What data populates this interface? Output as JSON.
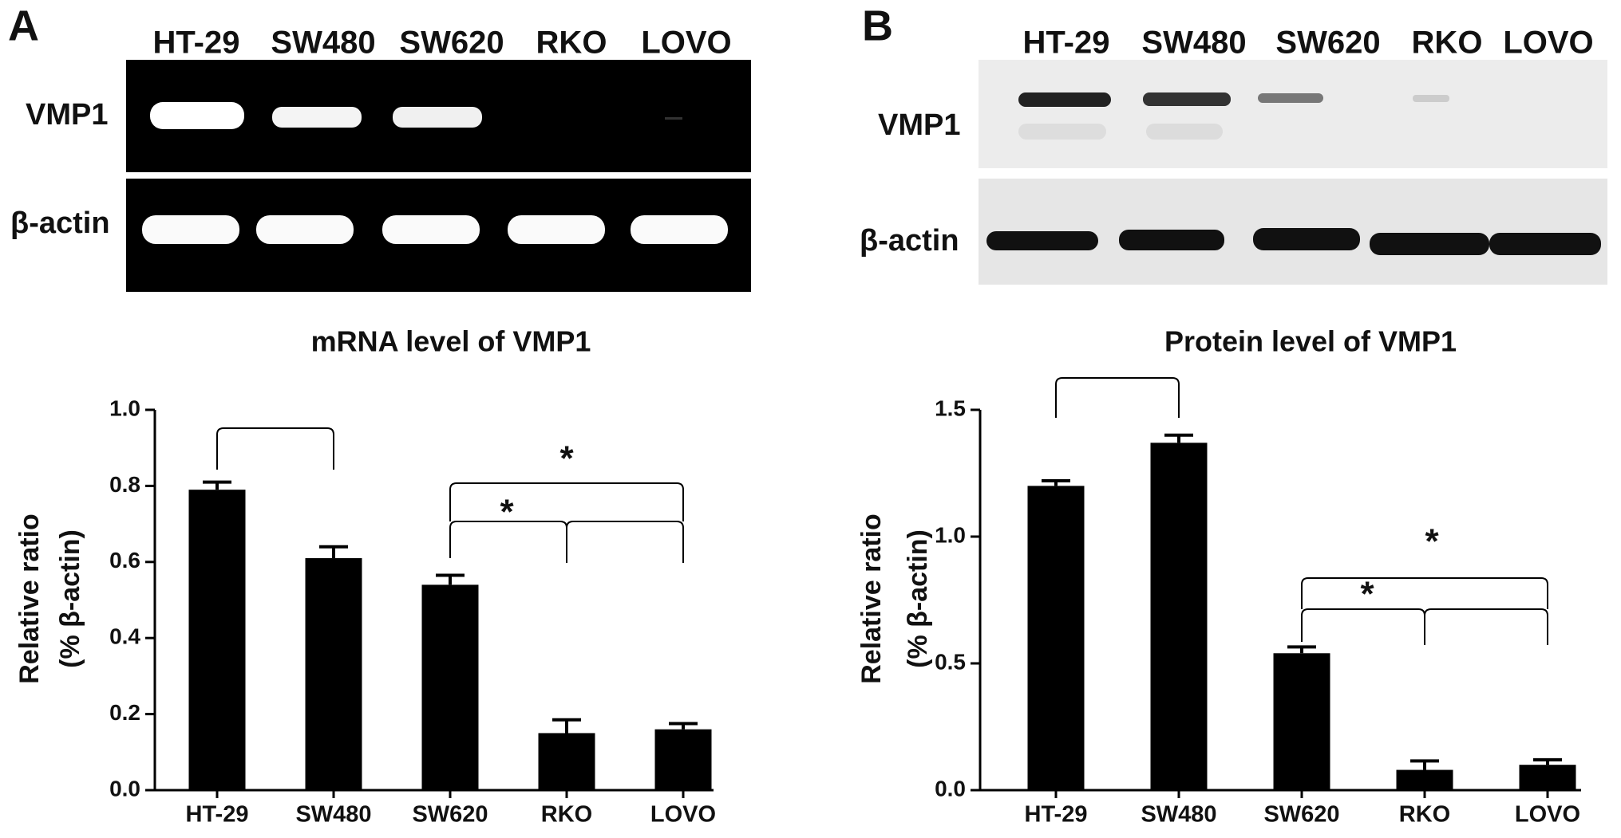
{
  "panels": [
    {
      "label": "A",
      "blot": {
        "lanes": [
          "HT-29",
          "SW480",
          "SW620",
          "RKO",
          "LOVO"
        ],
        "rows": [
          "VMP1",
          "β-actin"
        ]
      }
    },
    {
      "label": "B",
      "blot": {
        "lanes": [
          "HT-29",
          "SW480",
          "SW620",
          "RKO",
          "LOVO"
        ],
        "rows": [
          "VMP1",
          "β-actin"
        ]
      }
    }
  ],
  "chart_data": [
    {
      "type": "bar",
      "title": "mRNA level of VMP1",
      "ylabel": [
        "Relative ratio",
        "(% β-actin)"
      ],
      "categories": [
        "HT-29",
        "SW480",
        "SW620",
        "RKO",
        "LOVO"
      ],
      "values": [
        0.79,
        0.61,
        0.54,
        0.15,
        0.16
      ],
      "errors": [
        0.02,
        0.03,
        0.025,
        0.035,
        0.015
      ],
      "color": "#000000",
      "ylim": [
        0,
        1.0
      ],
      "yticks": [
        {
          "value": 0,
          "label": "0.0"
        },
        0.2,
        0.4,
        0.6,
        0.8,
        {
          "value": 1,
          "label": "1.0"
        }
      ],
      "annotations": [
        "*",
        "*"
      ]
    },
    {
      "type": "bar",
      "title": "Protein level of VMP1",
      "ylabel": [
        "Relative ratio",
        "(% β-actin)"
      ],
      "categories": [
        "HT-29",
        "SW480",
        "SW620",
        "RKO",
        "LOVO"
      ],
      "values": [
        1.2,
        1.37,
        0.54,
        0.08,
        0.1
      ],
      "errors": [
        0.02,
        0.03,
        0.025,
        0.035,
        0.02
      ],
      "color": "#000000",
      "ylim": [
        0,
        1.5
      ],
      "yticks": [
        {
          "value": 0,
          "label": "0.0"
        },
        0.5,
        {
          "value": 1,
          "label": "1.0"
        },
        1.5
      ],
      "annotations": [
        "*",
        "*"
      ]
    }
  ]
}
